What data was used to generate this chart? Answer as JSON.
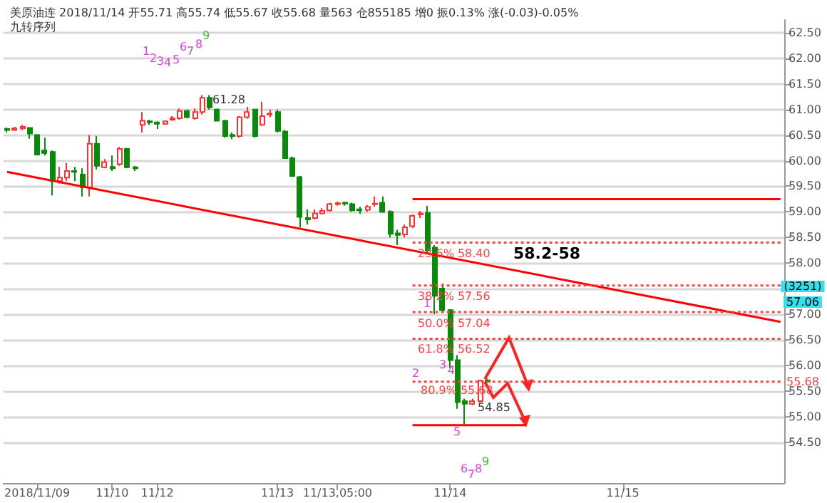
{
  "chart_data": {
    "type": "candlestick",
    "title": "美原油连 2018/11/14 开55.71 高55.74 低55.67 收55.68 量563 仓855185 增0 振0.13% 涨(-0.03)-0.05%",
    "subtitle": "九转序列",
    "categories": [
      null,
      null,
      null,
      null,
      "2018/11/09",
      null,
      null,
      null,
      null,
      null,
      null,
      null,
      null,
      null,
      "11/10",
      null,
      null,
      null,
      null,
      null,
      "11/12",
      null,
      null,
      null,
      null,
      null,
      null,
      null,
      null,
      null,
      null,
      null,
      null,
      null,
      null,
      null,
      "11/13",
      null,
      null,
      null,
      null,
      null,
      null,
      null,
      "11/13,05:00",
      null,
      null,
      null,
      null,
      null,
      null,
      null,
      null,
      null,
      null,
      null,
      null,
      null,
      null,
      "11/14",
      null,
      null,
      null,
      null,
      null,
      null,
      null,
      null,
      null,
      null,
      null,
      null,
      null,
      null,
      null,
      null,
      null,
      null,
      null,
      null,
      null,
      null,
      "11/15",
      null,
      null,
      null,
      null,
      null,
      null,
      null,
      null,
      null,
      null,
      null,
      null,
      null,
      null,
      null,
      null,
      null,
      null,
      null,
      null,
      null
    ],
    "ohlc": [
      [
        60.62,
        60.65,
        60.55,
        60.6
      ],
      [
        60.6,
        60.66,
        60.58,
        60.63
      ],
      [
        60.63,
        60.7,
        60.6,
        60.66
      ],
      [
        60.64,
        60.65,
        60.43,
        60.53
      ],
      [
        60.5,
        60.52,
        60.1,
        60.12
      ],
      [
        60.2,
        60.45,
        60.1,
        60.15
      ],
      [
        60.17,
        60.2,
        59.32,
        59.6
      ],
      [
        59.6,
        59.88,
        59.55,
        59.67
      ],
      [
        59.67,
        59.95,
        59.6,
        59.8
      ],
      [
        59.8,
        59.88,
        59.6,
        59.78
      ],
      [
        59.73,
        59.85,
        59.3,
        59.48
      ],
      [
        59.48,
        60.5,
        59.3,
        60.33
      ],
      [
        60.33,
        60.48,
        59.83,
        59.9
      ],
      [
        59.87,
        60.03,
        59.85,
        59.97
      ],
      [
        59.88,
        60.1,
        59.8,
        59.85
      ],
      [
        59.93,
        60.27,
        59.9,
        60.23
      ],
      [
        60.23,
        60.25,
        59.85,
        59.87
      ],
      [
        59.87,
        59.9,
        59.8,
        59.85
      ],
      [
        60.7,
        60.95,
        60.55,
        60.78
      ],
      [
        60.77,
        60.8,
        60.7,
        60.75
      ],
      [
        60.75,
        60.77,
        60.62,
        60.72
      ],
      [
        60.72,
        60.78,
        60.7,
        60.77
      ],
      [
        60.8,
        60.87,
        60.78,
        60.83
      ],
      [
        60.83,
        61.02,
        60.8,
        60.97
      ],
      [
        60.97,
        61.0,
        60.83,
        60.85
      ],
      [
        60.83,
        61.02,
        60.8,
        60.95
      ],
      [
        60.95,
        61.28,
        60.9,
        61.23
      ],
      [
        61.23,
        61.28,
        61.0,
        61.04
      ],
      [
        61.0,
        61.02,
        60.78,
        60.78
      ],
      [
        60.78,
        60.8,
        60.45,
        60.48
      ],
      [
        60.5,
        60.55,
        60.42,
        60.48
      ],
      [
        60.48,
        60.87,
        60.45,
        60.85
      ],
      [
        60.85,
        61.05,
        60.82,
        60.95
      ],
      [
        61.0,
        61.0,
        60.45,
        60.48
      ],
      [
        60.7,
        61.15,
        60.68,
        60.87
      ],
      [
        60.9,
        61.0,
        60.85,
        60.92
      ],
      [
        60.95,
        61.0,
        60.55,
        60.58
      ],
      [
        60.57,
        60.6,
        60.05,
        60.05
      ],
      [
        60.05,
        60.08,
        59.68,
        59.7
      ],
      [
        59.68,
        59.7,
        58.7,
        58.9
      ],
      [
        58.88,
        59.05,
        58.75,
        58.85
      ],
      [
        58.88,
        59.05,
        58.85,
        58.97
      ],
      [
        58.97,
        59.07,
        58.95,
        59.02
      ],
      [
        59.03,
        59.18,
        59.0,
        59.15
      ],
      [
        59.15,
        59.2,
        59.12,
        59.17
      ],
      [
        59.18,
        59.2,
        59.12,
        59.16
      ],
      [
        59.15,
        59.18,
        59.0,
        59.03
      ],
      [
        59.05,
        59.1,
        58.96,
        59.03
      ],
      [
        59.04,
        59.13,
        59.0,
        59.1
      ],
      [
        59.15,
        59.3,
        59.1,
        59.16
      ],
      [
        59.18,
        59.3,
        58.98,
        59.0
      ],
      [
        59.0,
        59.03,
        58.5,
        58.57
      ],
      [
        58.58,
        58.65,
        58.35,
        58.55
      ],
      [
        58.56,
        58.75,
        58.5,
        58.7
      ],
      [
        58.72,
        58.95,
        58.68,
        58.92
      ],
      [
        58.95,
        59.02,
        58.88,
        58.97
      ],
      [
        58.98,
        59.12,
        58.2,
        58.25
      ],
      [
        58.3,
        58.35,
        57.0,
        57.36
      ],
      [
        57.5,
        57.6,
        57.05,
        57.08
      ],
      [
        57.08,
        57.1,
        55.95,
        56.1
      ],
      [
        56.1,
        56.2,
        55.15,
        55.28
      ],
      [
        55.3,
        55.35,
        54.85,
        55.25
      ],
      [
        55.25,
        55.35,
        55.22,
        55.3
      ],
      [
        55.3,
        55.72,
        55.28,
        55.7
      ],
      [
        55.71,
        55.74,
        55.67,
        55.68
      ],
      null,
      null,
      null,
      null,
      null,
      null,
      null,
      null,
      null,
      null,
      null,
      null,
      null,
      null,
      null,
      null,
      null,
      null,
      null,
      null,
      null,
      null,
      null,
      null,
      null,
      null,
      null,
      null,
      null,
      null,
      null,
      null,
      null,
      null,
      null,
      null,
      null,
      null,
      null
    ],
    "series": [
      {
        "type": "line",
        "color": "#ff0000",
        "line_style": "solid",
        "values": [
          59.78,
          null,
          null,
          null,
          null,
          null,
          null,
          null,
          null,
          null,
          null,
          null,
          null,
          null,
          null,
          null,
          null,
          null,
          null,
          null,
          null,
          null,
          null,
          null,
          null,
          null,
          null,
          null,
          null,
          null,
          null,
          null,
          null,
          null,
          null,
          null,
          null,
          null,
          null,
          null,
          null,
          null,
          null,
          null,
          null,
          null,
          null,
          null,
          null,
          null,
          null,
          null,
          null,
          null,
          null,
          null,
          null,
          null,
          null,
          null,
          null,
          null,
          null,
          null,
          null,
          null,
          null,
          null,
          null,
          null,
          null,
          null,
          null,
          null,
          null,
          null,
          null,
          null,
          null,
          null,
          null,
          null,
          null,
          null,
          null,
          null,
          null,
          null,
          null,
          null,
          null,
          null,
          null,
          null,
          null,
          null,
          null,
          null,
          null,
          null,
          null,
          null,
          null,
          56.85
        ]
      },
      {
        "type": "line",
        "color": "#ff0000",
        "line_style": "solid",
        "values": [
          null,
          null,
          null,
          null,
          null,
          null,
          null,
          null,
          null,
          null,
          null,
          null,
          null,
          null,
          null,
          null,
          null,
          null,
          null,
          null,
          null,
          null,
          null,
          null,
          null,
          null,
          null,
          null,
          null,
          null,
          null,
          null,
          null,
          null,
          null,
          null,
          null,
          null,
          null,
          null,
          null,
          null,
          null,
          null,
          null,
          null,
          null,
          null,
          null,
          null,
          null,
          null,
          null,
          null,
          59.25,
          null,
          null,
          null,
          null,
          null,
          null,
          null,
          null,
          null,
          null,
          null,
          null,
          null,
          null,
          null,
          null,
          null,
          null,
          null,
          null,
          null,
          null,
          null,
          null,
          null,
          null,
          null,
          null,
          null,
          null,
          null,
          null,
          null,
          null,
          null,
          null,
          null,
          null,
          null,
          null,
          null,
          null,
          null,
          null,
          null,
          null,
          null,
          null,
          59.25
        ]
      },
      {
        "type": "line",
        "color": "#ff0000",
        "line_style": "solid",
        "values": [
          null,
          null,
          null,
          null,
          null,
          null,
          null,
          null,
          null,
          null,
          null,
          null,
          null,
          null,
          null,
          null,
          null,
          null,
          null,
          null,
          null,
          null,
          null,
          null,
          null,
          null,
          null,
          null,
          null,
          null,
          null,
          null,
          null,
          null,
          null,
          null,
          null,
          null,
          null,
          null,
          null,
          null,
          null,
          null,
          null,
          null,
          null,
          null,
          null,
          null,
          null,
          null,
          null,
          null,
          54.83,
          null,
          null,
          null,
          null,
          null,
          null,
          null,
          null,
          null,
          null,
          null,
          null,
          null,
          null,
          54.83,
          null,
          null,
          null,
          null,
          null,
          null,
          null,
          null,
          null,
          null,
          null,
          null,
          null,
          null,
          null,
          null,
          null,
          null,
          null,
          null,
          null,
          null,
          null,
          null,
          null,
          null,
          null,
          null,
          null,
          null,
          null,
          null,
          null,
          null
        ]
      },
      {
        "type": "line",
        "color": "#ff4444",
        "line_style": "dotted",
        "values": [
          null,
          null,
          null,
          null,
          null,
          null,
          null,
          null,
          null,
          null,
          null,
          null,
          null,
          null,
          null,
          null,
          null,
          null,
          null,
          null,
          null,
          null,
          null,
          null,
          null,
          null,
          null,
          null,
          null,
          null,
          null,
          null,
          null,
          null,
          null,
          null,
          null,
          null,
          null,
          null,
          null,
          null,
          null,
          null,
          null,
          null,
          null,
          null,
          null,
          null,
          null,
          null,
          null,
          null,
          58.4,
          null,
          null,
          null,
          null,
          null,
          null,
          null,
          null,
          null,
          null,
          null,
          null,
          null,
          null,
          null,
          null,
          null,
          null,
          null,
          null,
          null,
          null,
          null,
          null,
          null,
          null,
          null,
          null,
          null,
          null,
          null,
          null,
          null,
          null,
          null,
          null,
          null,
          null,
          null,
          null,
          null,
          null,
          null,
          null,
          null,
          null,
          null,
          null,
          58.4
        ]
      },
      {
        "type": "line",
        "color": "#ff4444",
        "line_style": "dotted",
        "values": [
          null,
          null,
          null,
          null,
          null,
          null,
          null,
          null,
          null,
          null,
          null,
          null,
          null,
          null,
          null,
          null,
          null,
          null,
          null,
          null,
          null,
          null,
          null,
          null,
          null,
          null,
          null,
          null,
          null,
          null,
          null,
          null,
          null,
          null,
          null,
          null,
          null,
          null,
          null,
          null,
          null,
          null,
          null,
          null,
          null,
          null,
          null,
          null,
          null,
          null,
          null,
          null,
          null,
          null,
          57.56,
          null,
          null,
          null,
          null,
          null,
          null,
          null,
          null,
          null,
          null,
          null,
          null,
          null,
          null,
          null,
          null,
          null,
          null,
          null,
          null,
          null,
          null,
          null,
          null,
          null,
          null,
          null,
          null,
          null,
          null,
          null,
          null,
          null,
          null,
          null,
          null,
          null,
          null,
          null,
          null,
          null,
          null,
          null,
          null,
          null,
          null,
          null,
          null,
          57.56
        ]
      },
      {
        "type": "line",
        "color": "#ff4444",
        "line_style": "dotted",
        "values": [
          null,
          null,
          null,
          null,
          null,
          null,
          null,
          null,
          null,
          null,
          null,
          null,
          null,
          null,
          null,
          null,
          null,
          null,
          null,
          null,
          null,
          null,
          null,
          null,
          null,
          null,
          null,
          null,
          null,
          null,
          null,
          null,
          null,
          null,
          null,
          null,
          null,
          null,
          null,
          null,
          null,
          null,
          null,
          null,
          null,
          null,
          null,
          null,
          null,
          null,
          null,
          null,
          null,
          null,
          57.04,
          null,
          null,
          null,
          null,
          null,
          null,
          null,
          null,
          null,
          null,
          null,
          null,
          null,
          null,
          null,
          null,
          null,
          null,
          null,
          null,
          null,
          null,
          null,
          null,
          null,
          null,
          null,
          null,
          null,
          null,
          null,
          null,
          null,
          null,
          null,
          null,
          null,
          null,
          null,
          null,
          null,
          null,
          null,
          null,
          null,
          null,
          null,
          null,
          57.04
        ]
      },
      {
        "type": "line",
        "color": "#ff4444",
        "line_style": "dotted",
        "values": [
          null,
          null,
          null,
          null,
          null,
          null,
          null,
          null,
          null,
          null,
          null,
          null,
          null,
          null,
          null,
          null,
          null,
          null,
          null,
          null,
          null,
          null,
          null,
          null,
          null,
          null,
          null,
          null,
          null,
          null,
          null,
          null,
          null,
          null,
          null,
          null,
          null,
          null,
          null,
          null,
          null,
          null,
          null,
          null,
          null,
          null,
          null,
          null,
          null,
          null,
          null,
          null,
          null,
          null,
          56.52,
          null,
          null,
          null,
          null,
          null,
          null,
          null,
          null,
          null,
          null,
          null,
          null,
          null,
          null,
          null,
          null,
          null,
          null,
          null,
          null,
          null,
          null,
          null,
          null,
          null,
          null,
          null,
          null,
          null,
          null,
          null,
          null,
          null,
          null,
          null,
          null,
          null,
          null,
          null,
          null,
          null,
          null,
          null,
          null,
          null,
          null,
          null,
          null,
          56.52
        ]
      },
      {
        "type": "line",
        "color": "#ff4444",
        "line_style": "dotted",
        "values": [
          null,
          null,
          null,
          null,
          null,
          null,
          null,
          null,
          null,
          null,
          null,
          null,
          null,
          null,
          null,
          null,
          null,
          null,
          null,
          null,
          null,
          null,
          null,
          null,
          null,
          null,
          null,
          null,
          null,
          null,
          null,
          null,
          null,
          null,
          null,
          null,
          null,
          null,
          null,
          null,
          null,
          null,
          null,
          null,
          null,
          null,
          null,
          null,
          null,
          null,
          null,
          null,
          null,
          null,
          55.68,
          null,
          null,
          null,
          null,
          null,
          null,
          null,
          null,
          null,
          null,
          null,
          null,
          null,
          null,
          null,
          null,
          null,
          null,
          null,
          null,
          null,
          null,
          null,
          null,
          null,
          null,
          null,
          null,
          null,
          null,
          null,
          null,
          null,
          null,
          null,
          null,
          null,
          null,
          null,
          null,
          null,
          null,
          null,
          null,
          null,
          null,
          null,
          null,
          55.68
        ]
      }
    ],
    "ylim": [
      53.7,
      62.75
    ],
    "yticks": [
      {
        "value": 54.5,
        "label": "54.50"
      },
      {
        "value": 55,
        "label": "55.00"
      },
      {
        "value": 55.5,
        "label": "55.50"
      },
      {
        "value": 56,
        "label": "56.00"
      },
      {
        "value": 56.5,
        "label": "56.50"
      },
      {
        "value": 57,
        "label": "57.00"
      },
      {
        "value": 57.5,
        "label": null
      },
      {
        "value": 58,
        "label": "58.00"
      },
      {
        "value": 58.5,
        "label": "58.50"
      },
      {
        "value": 59,
        "label": "59.00"
      },
      {
        "value": 59.5,
        "label": "59.50"
      },
      {
        "value": 60,
        "label": "60.00"
      },
      {
        "value": 60.5,
        "label": "60.50"
      },
      {
        "value": 61,
        "label": "61.00"
      },
      {
        "value": 61.5,
        "label": "61.50"
      },
      {
        "value": 62,
        "label": "62.00"
      },
      {
        "value": 62.5,
        "label": "62.50"
      }
    ],
    "grid": "y",
    "annotations": [
      "61.28",
      "54.85",
      "58.2-58",
      "23.6% 58.40",
      "38.2% 57.56",
      "50.0% 57.04",
      "61.8% 56.52",
      {
        "text": "80.9% 55.68",
        "y": 55.68
      },
      "(3251)",
      "57.06",
      "55.68",
      "1",
      "2",
      "3",
      "4",
      "5",
      "6",
      "7",
      "8",
      "9",
      "1",
      "2",
      "3",
      "4",
      "5",
      "6",
      "7",
      "8",
      "9"
    ]
  }
}
